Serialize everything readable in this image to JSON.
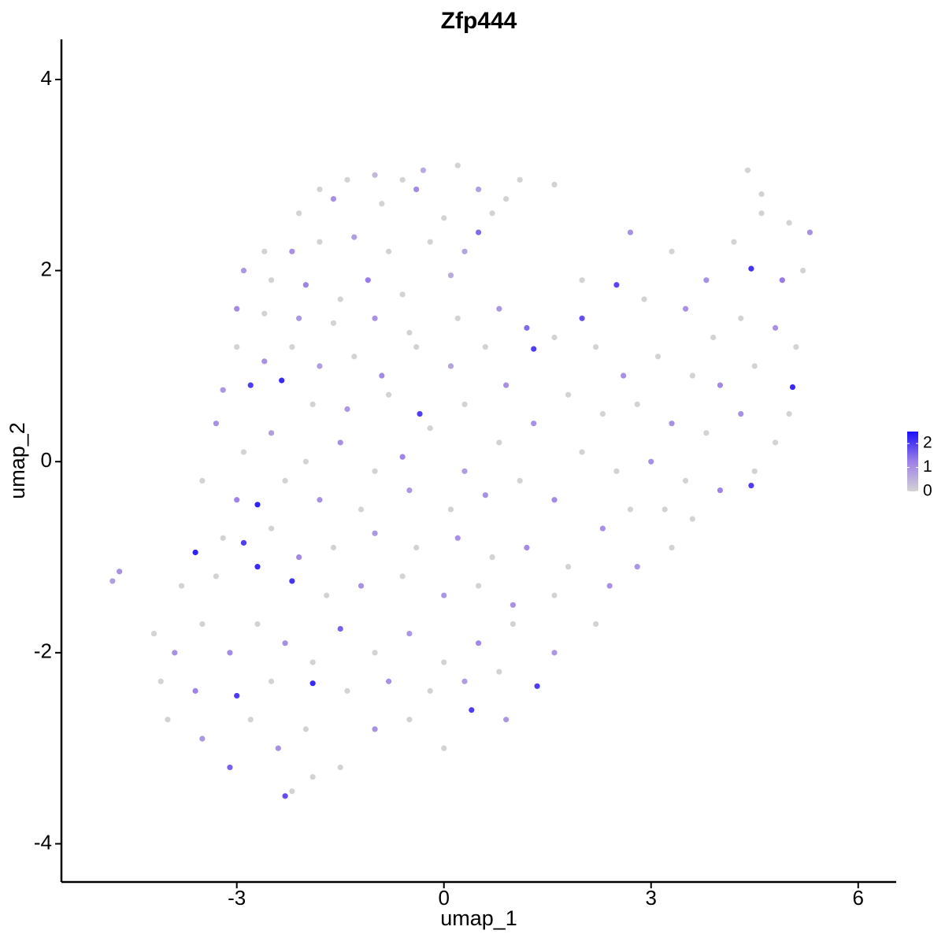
{
  "chart_data": {
    "type": "scatter",
    "title": "Zfp444",
    "xlabel": "umap_1",
    "ylabel": "umap_2",
    "xlim": [
      -5.54,
      6.55
    ],
    "ylim": [
      -4.4,
      4.42
    ],
    "xticks": [
      -3,
      0,
      3,
      6
    ],
    "yticks": [
      -4,
      -2,
      0,
      2,
      4
    ],
    "colors": [
      "#d3d3d3",
      "#9d80e8",
      "#1a10f8"
    ],
    "clim": [
      0,
      2.5
    ],
    "cticks": [
      0,
      1,
      2
    ],
    "x": [
      -1.8,
      -1.4,
      -1.0,
      -0.6,
      -0.3,
      0.2,
      0.5,
      0.9,
      1.1,
      1.6,
      -2.1,
      -1.6,
      -0.9,
      -0.4,
      0.0,
      0.5,
      0.7,
      -2.6,
      -2.2,
      -1.8,
      -1.3,
      -0.8,
      -0.2,
      0.3,
      -2.9,
      -2.5,
      -2.0,
      -1.5,
      -1.1,
      -0.6,
      0.1,
      -3.0,
      -2.6,
      -2.1,
      -1.6,
      -1.0,
      -0.5,
      0.2,
      0.8,
      -3.0,
      -2.6,
      -2.2,
      -1.8,
      -1.3,
      -0.9,
      -0.4,
      0.1,
      0.6,
      -3.2,
      -2.8,
      -2.35,
      -1.9,
      -1.4,
      -0.8,
      -0.35,
      0.3,
      0.9,
      -3.3,
      -2.9,
      -2.5,
      -2.0,
      -1.5,
      -1.0,
      -0.6,
      -0.2,
      0.3,
      0.8,
      1.3,
      -3.5,
      -3.0,
      -2.7,
      -2.3,
      -1.8,
      -1.2,
      -0.5,
      0.1,
      0.6,
      1.1,
      1.6,
      -3.8,
      -3.6,
      -3.2,
      -2.9,
      -2.5,
      -2.1,
      -1.6,
      -1.0,
      -0.4,
      0.2,
      0.7,
      1.2,
      1.8,
      2.4,
      2.8,
      3.3,
      -4.8,
      -4.7,
      -3.3,
      -2.7,
      -2.2,
      -1.7,
      -1.2,
      -0.6,
      0.0,
      0.5,
      1.0,
      1.6,
      -4.2,
      -3.9,
      -3.5,
      -3.1,
      -2.7,
      -2.3,
      -1.9,
      -1.5,
      -1.0,
      -0.5,
      0.0,
      0.5,
      1.0,
      1.6,
      2.2,
      -4.1,
      -3.6,
      -3.0,
      -2.5,
      -1.9,
      -1.4,
      -0.8,
      -0.2,
      0.3,
      0.8,
      1.35,
      -4.0,
      -3.5,
      -3.1,
      -2.8,
      -2.4,
      -2.0,
      -1.5,
      -1.0,
      -0.5,
      0.0,
      0.4,
      0.9,
      -2.3,
      -2.2,
      -1.9,
      1.2,
      1.6,
      2.0,
      2.0,
      2.5,
      2.9,
      2.7,
      3.3,
      3.8,
      4.2,
      4.45,
      4.6,
      4.4,
      4.6,
      5.0,
      5.3,
      5.2,
      4.9,
      3.5,
      3.9,
      4.3,
      4.8,
      5.1,
      2.2,
      2.6,
      3.1,
      3.6,
      4.0,
      4.5,
      5.05,
      5.0,
      1.8,
      2.3,
      2.8,
      3.3,
      3.8,
      4.3,
      4.8,
      2.0,
      2.5,
      3.0,
      3.5,
      4.0,
      4.5,
      4.45,
      3.2,
      3.6,
      1.3,
      2.3,
      2.7
    ],
    "y": [
      2.85,
      2.95,
      3.0,
      2.95,
      3.05,
      3.1,
      2.85,
      2.75,
      2.95,
      2.9,
      2.6,
      2.75,
      2.7,
      2.85,
      2.55,
      2.4,
      2.6,
      2.2,
      2.2,
      2.3,
      2.35,
      2.2,
      2.3,
      2.2,
      2.0,
      1.9,
      1.85,
      1.7,
      1.9,
      1.75,
      1.95,
      1.6,
      1.55,
      1.5,
      1.45,
      1.5,
      1.35,
      1.5,
      1.6,
      1.2,
      1.05,
      1.2,
      1.0,
      1.1,
      0.9,
      1.2,
      1.0,
      1.2,
      0.75,
      0.8,
      0.85,
      0.6,
      0.55,
      0.7,
      0.5,
      0.6,
      0.8,
      0.4,
      0.1,
      0.3,
      0.0,
      0.2,
      -0.1,
      0.05,
      0.35,
      -0.1,
      0.2,
      0.4,
      -0.2,
      -0.4,
      -0.45,
      -0.2,
      -0.4,
      -0.5,
      -0.3,
      -0.5,
      -0.35,
      -0.2,
      -0.4,
      -1.3,
      -0.95,
      -0.8,
      -0.85,
      -0.7,
      -1.0,
      -0.9,
      -0.75,
      -0.9,
      -0.8,
      -1.0,
      -0.9,
      -1.1,
      -1.3,
      -1.1,
      -0.9,
      -1.25,
      -1.15,
      -1.2,
      -1.1,
      -1.25,
      -1.4,
      -1.3,
      -1.2,
      -1.4,
      -1.3,
      -1.5,
      -1.4,
      -1.8,
      -2.0,
      -1.7,
      -2.0,
      -1.7,
      -1.9,
      -2.1,
      -1.75,
      -2.0,
      -1.8,
      -2.1,
      -1.9,
      -1.7,
      -2.0,
      -1.7,
      -2.3,
      -2.4,
      -2.45,
      -2.3,
      -2.32,
      -2.4,
      -2.3,
      -2.4,
      -2.3,
      -2.2,
      -2.35,
      -2.7,
      -2.9,
      -3.2,
      -2.7,
      -3.0,
      -2.8,
      -3.2,
      -2.8,
      -2.7,
      -3.0,
      -2.6,
      -2.7,
      -3.5,
      -3.45,
      -3.3,
      1.4,
      1.3,
      1.5,
      1.9,
      1.85,
      1.7,
      2.4,
      2.2,
      1.9,
      2.3,
      2.02,
      2.6,
      3.05,
      2.8,
      2.5,
      2.4,
      2.0,
      1.9,
      1.6,
      1.3,
      1.5,
      1.4,
      1.2,
      1.2,
      0.9,
      1.1,
      0.9,
      0.8,
      1.0,
      0.78,
      0.5,
      0.7,
      0.5,
      0.6,
      0.4,
      0.3,
      0.5,
      0.2,
      0.1,
      -0.1,
      0.0,
      -0.2,
      -0.3,
      -0.1,
      -0.25,
      -0.5,
      -0.6,
      1.18,
      -0.7,
      -0.5
    ],
    "expression": [
      0,
      0,
      0.4,
      0,
      0.6,
      0,
      0.8,
      0,
      0,
      0,
      0,
      1.0,
      0,
      1.1,
      0,
      1.5,
      0,
      0,
      1.0,
      0,
      0.8,
      0,
      0,
      0.7,
      0.9,
      0,
      1.2,
      0,
      1.3,
      0,
      0.6,
      1.1,
      0,
      0.9,
      0,
      1.0,
      0,
      0,
      0.9,
      0,
      1.0,
      0,
      0.8,
      0,
      1.1,
      0,
      0.7,
      0,
      0.9,
      2.0,
      2.2,
      0,
      0.9,
      0,
      2.0,
      0,
      1.0,
      1.0,
      0,
      0.8,
      0,
      1.0,
      0,
      1.2,
      0,
      0.8,
      0,
      1.0,
      0,
      1.2,
      2.3,
      0,
      1.0,
      0,
      0.9,
      0,
      1.0,
      0,
      1.1,
      0,
      2.3,
      0,
      2.0,
      0,
      1.1,
      0,
      0.9,
      0,
      1.0,
      0,
      1.1,
      0,
      1.0,
      0.9,
      0,
      0.8,
      1.0,
      0,
      2.2,
      2.1,
      0,
      1.0,
      0,
      0.9,
      0,
      1.0,
      0,
      0,
      1.0,
      0,
      1.1,
      0,
      1.0,
      0,
      1.6,
      0,
      0.9,
      0,
      1.1,
      0,
      0.9,
      0,
      0,
      1.2,
      2.0,
      0,
      2.2,
      0,
      1.0,
      0,
      0.8,
      0,
      2.0,
      0,
      0.9,
      1.6,
      0,
      1.0,
      0,
      0,
      1.0,
      0,
      0,
      2.0,
      0.9,
      1.8,
      0,
      0,
      1.5,
      0,
      1.8,
      0,
      1.9,
      0,
      1.0,
      0,
      1.0,
      0,
      2.1,
      0,
      0,
      0,
      0,
      1.0,
      0,
      1.3,
      1.0,
      0,
      0,
      1.0,
      0,
      0,
      1.0,
      0,
      0,
      1.1,
      0,
      2.2,
      0,
      0,
      0,
      0,
      1.0,
      0,
      1.0,
      0,
      0,
      0,
      1.0,
      0,
      1.2,
      0,
      2.0,
      0,
      0,
      2.0,
      1.0,
      0
    ]
  }
}
